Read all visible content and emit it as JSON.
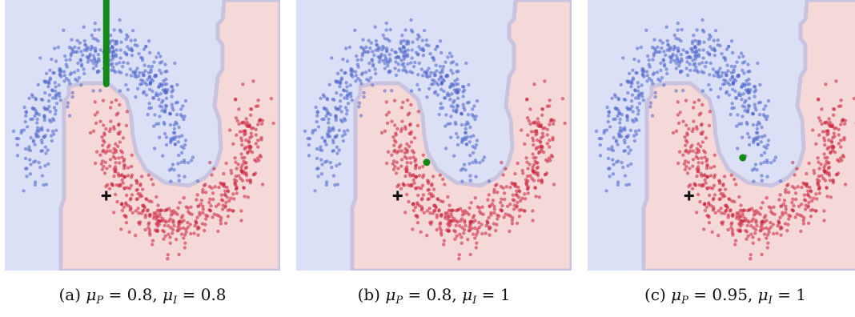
{
  "figure": {
    "colors": {
      "class_blue_region": "#dbe0f6",
      "class_red_region": "#f5d8d8",
      "boundary_band": "#c9c3e0",
      "blue_points": "#4a63c8",
      "red_points": "#c8203a",
      "marker_plus": "#111111",
      "marker_green": "#138a18"
    }
  },
  "chart_data": [
    {
      "type": "scatter",
      "panel_label": "(a)",
      "caption_parts": [
        "(a) ",
        "μ",
        "P",
        " = 0.8, ",
        "μ",
        "I",
        " = 0.8"
      ],
      "title": "",
      "xlabel": "",
      "ylabel": "",
      "xlim": [
        -1.4,
        2.4
      ],
      "ylim": [
        -0.9,
        1.45
      ],
      "grid": false,
      "series": [
        {
          "class": "blue",
          "shape": "upper moon",
          "center": [
            0,
            0
          ],
          "radius": 1,
          "theta_deg": [
            0,
            180
          ],
          "noise": 0.12,
          "count": 500
        },
        {
          "class": "red",
          "shape": "lower moon",
          "center": [
            1,
            0.5
          ],
          "radius": 1,
          "theta_deg": [
            180,
            360
          ],
          "noise": 0.12,
          "count": 500
        }
      ],
      "markers": [
        {
          "shape": "plus",
          "color": "black",
          "x": 0.0,
          "y": -0.25
        },
        {
          "shape": "vertical-bar",
          "color": "green",
          "x": 0.0,
          "y_from": 0.72,
          "y_to": 1.45
        }
      ]
    },
    {
      "type": "scatter",
      "panel_label": "(b)",
      "caption_parts": [
        "(b) ",
        "μ",
        "P",
        " = 0.8, ",
        "μ",
        "I",
        " = 1"
      ],
      "title": "",
      "xlabel": "",
      "ylabel": "",
      "xlim": [
        -1.4,
        2.4
      ],
      "ylim": [
        -0.9,
        1.45
      ],
      "grid": false,
      "series": [
        {
          "class": "blue",
          "shape": "upper moon",
          "center": [
            0,
            0
          ],
          "radius": 1,
          "theta_deg": [
            0,
            180
          ],
          "noise": 0.12,
          "count": 500
        },
        {
          "class": "red",
          "shape": "lower moon",
          "center": [
            1,
            0.5
          ],
          "radius": 1,
          "theta_deg": [
            180,
            360
          ],
          "noise": 0.12,
          "count": 500
        }
      ],
      "markers": [
        {
          "shape": "plus",
          "color": "black",
          "x": 0.0,
          "y": -0.25
        },
        {
          "shape": "dot",
          "color": "green",
          "x": 0.4,
          "y": 0.04
        }
      ]
    },
    {
      "type": "scatter",
      "panel_label": "(c)",
      "caption_parts": [
        "(c) ",
        "μ",
        "P",
        " = 0.95, ",
        "μ",
        "I",
        " = 1"
      ],
      "title": "",
      "xlabel": "",
      "ylabel": "",
      "xlim": [
        -1.4,
        2.4
      ],
      "ylim": [
        -0.9,
        1.45
      ],
      "grid": false,
      "series": [
        {
          "class": "blue",
          "shape": "upper moon",
          "center": [
            0,
            0
          ],
          "radius": 1,
          "theta_deg": [
            0,
            180
          ],
          "noise": 0.12,
          "count": 500
        },
        {
          "class": "red",
          "shape": "lower moon",
          "center": [
            1,
            0.5
          ],
          "radius": 1,
          "theta_deg": [
            180,
            360
          ],
          "noise": 0.12,
          "count": 500
        }
      ],
      "markers": [
        {
          "shape": "plus",
          "color": "black",
          "x": 0.0,
          "y": -0.25
        },
        {
          "shape": "dot",
          "color": "green",
          "x": 0.74,
          "y": 0.08
        }
      ]
    }
  ]
}
